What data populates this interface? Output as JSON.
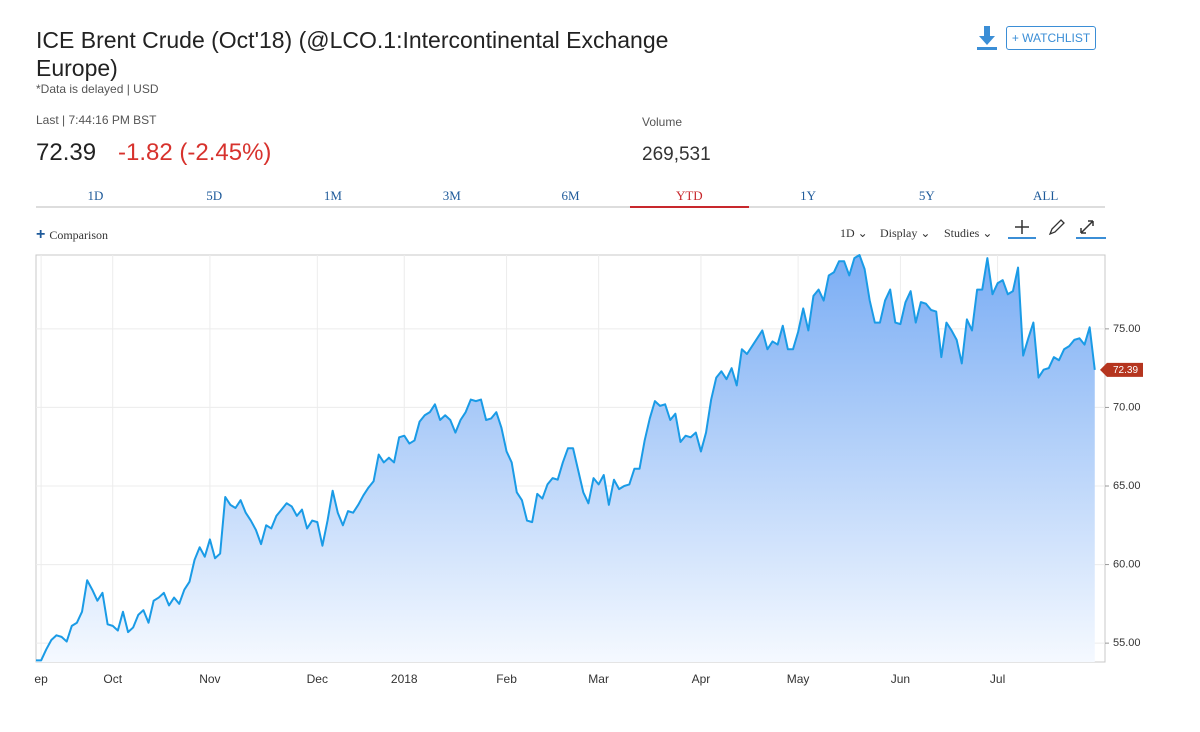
{
  "header": {
    "title": "ICE Brent Crude (Oct'18) (@LCO.1:Intercontinental Exchange Europe)",
    "note": "*Data is delayed | USD",
    "watchlist": "+ WATCHLIST"
  },
  "quote": {
    "last_label": "Last | 7:44:16 PM BST",
    "last": "72.39",
    "change": "-1.82 (-2.45%)",
    "volume_label": "Volume",
    "volume": "269,531"
  },
  "ranges": [
    "1D",
    "5D",
    "1M",
    "3M",
    "6M",
    "YTD",
    "1Y",
    "5Y",
    "ALL"
  ],
  "active_range": 5,
  "toolbar": {
    "comparison": "Comparison",
    "interval": "1D",
    "display": "Display",
    "studies": "Studies"
  },
  "chart_data": {
    "type": "area",
    "color": "#1a9be6",
    "grid": true,
    "xlim": [
      0,
      209
    ],
    "xticks": [
      {
        "value": 1,
        "label": "ep"
      },
      {
        "value": 15,
        "label": "Oct"
      },
      {
        "value": 34,
        "label": "Nov"
      },
      {
        "value": 55,
        "label": "Dec"
      },
      {
        "value": 72,
        "label": "2018"
      },
      {
        "value": 92,
        "label": "Feb"
      },
      {
        "value": 110,
        "label": "Mar"
      },
      {
        "value": 130,
        "label": "Apr"
      },
      {
        "value": 149,
        "label": "May"
      },
      {
        "value": 169,
        "label": "Jun"
      },
      {
        "value": 188,
        "label": "Jul"
      }
    ],
    "ylim": [
      53.8,
      79.7
    ],
    "yticks": [
      {
        "value": 55,
        "label": "55.00"
      },
      {
        "value": 60,
        "label": "60.00"
      },
      {
        "value": 65,
        "label": "65.00"
      },
      {
        "value": 70,
        "label": "70.00"
      },
      {
        "value": 75,
        "label": "75.00"
      }
    ],
    "values": [
      53.9,
      53.9,
      54.6,
      55.2,
      55.5,
      55.4,
      55.1,
      56.1,
      56.3,
      57.0,
      59.0,
      58.4,
      57.7,
      58.2,
      56.2,
      56.1,
      55.8,
      57.0,
      55.7,
      56.0,
      56.8,
      57.1,
      56.3,
      57.7,
      57.9,
      58.2,
      57.4,
      57.9,
      57.5,
      58.4,
      58.9,
      60.3,
      61.1,
      60.5,
      61.6,
      60.4,
      60.7,
      64.3,
      63.8,
      63.6,
      64.1,
      63.3,
      62.8,
      62.2,
      61.3,
      62.5,
      62.3,
      63.1,
      63.5,
      63.9,
      63.7,
      63.1,
      63.5,
      62.3,
      62.8,
      62.7,
      61.2,
      62.8,
      64.7,
      63.3,
      62.5,
      63.4,
      63.3,
      63.8,
      64.4,
      64.9,
      65.3,
      67.0,
      66.5,
      66.8,
      66.5,
      68.1,
      68.2,
      67.7,
      67.9,
      69.1,
      69.5,
      69.7,
      70.2,
      69.2,
      69.5,
      69.2,
      68.4,
      69.2,
      69.7,
      70.5,
      70.4,
      70.5,
      69.2,
      69.3,
      69.7,
      68.7,
      67.2,
      66.5,
      64.6,
      64.1,
      62.8,
      62.7,
      64.5,
      64.2,
      65.1,
      65.5,
      65.4,
      66.5,
      67.4,
      67.4,
      66.0,
      64.6,
      63.9,
      65.5,
      65.1,
      65.7,
      63.8,
      65.4,
      64.8,
      65.0,
      65.1,
      66.1,
      66.1,
      67.9,
      69.3,
      70.4,
      70.1,
      70.2,
      69.2,
      69.6,
      67.8,
      68.2,
      68.1,
      68.4,
      67.2,
      68.4,
      70.5,
      71.9,
      72.3,
      71.8,
      72.5,
      71.4,
      73.7,
      73.4,
      73.9,
      74.4,
      74.9,
      73.7,
      74.2,
      74.0,
      75.2,
      73.7,
      73.7,
      74.8,
      76.3,
      74.9,
      77.1,
      77.5,
      76.8,
      78.4,
      78.6,
      79.3,
      79.3,
      78.4,
      79.5,
      79.7,
      78.8,
      76.8,
      75.4,
      75.4,
      76.8,
      77.5,
      75.4,
      75.3,
      76.7,
      77.4,
      75.4,
      76.7,
      76.6,
      76.2,
      76.1,
      73.2,
      75.4,
      74.9,
      74.3,
      72.8,
      75.6,
      74.9,
      77.5,
      77.5,
      79.5,
      77.2,
      77.9,
      78.1,
      77.2,
      77.4,
      78.9,
      73.3,
      74.4,
      75.4,
      71.9,
      72.4,
      72.5,
      73.2,
      73.0,
      73.7,
      73.9,
      74.3,
      74.4,
      74.0,
      75.1,
      72.39
    ]
  }
}
